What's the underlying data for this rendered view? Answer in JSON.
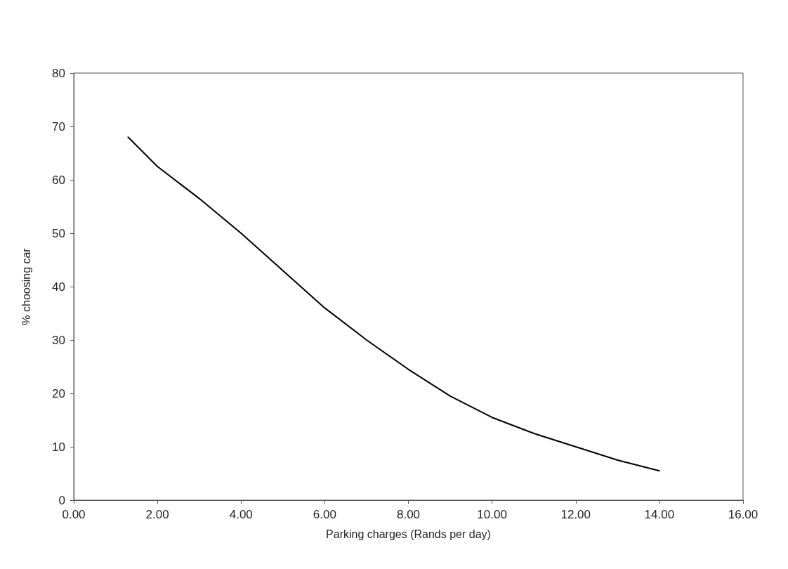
{
  "chart_data": {
    "type": "line",
    "xlabel": "Parking charges (Rands per day)",
    "ylabel": "% choosing car",
    "x": [
      1.3,
      2,
      3,
      4,
      5,
      6,
      7,
      8,
      9,
      10,
      11,
      12,
      13,
      14
    ],
    "series": [
      {
        "color": "#000000",
        "values": [
          68,
          62.5,
          56.5,
          50,
          43,
          36,
          30,
          24.5,
          19.5,
          15.5,
          12.5,
          10,
          7.5,
          5.5
        ]
      }
    ],
    "xlim": [
      0,
      16
    ],
    "xticks": [
      {
        "value": 0,
        "label": "0.00"
      },
      {
        "value": 2,
        "label": "2.00"
      },
      {
        "value": 4,
        "label": "4.00"
      },
      {
        "value": 6,
        "label": "6.00"
      },
      {
        "value": 8,
        "label": "8.00"
      },
      {
        "value": 10,
        "label": "10.00"
      },
      {
        "value": 12,
        "label": "12.00"
      },
      {
        "value": 14,
        "label": "14.00"
      },
      {
        "value": 16,
        "label": "16.00"
      }
    ],
    "ylim": [
      0,
      80
    ],
    "yticks": [
      0,
      10,
      20,
      30,
      40,
      50,
      60,
      70,
      80
    ],
    "grid": false,
    "marker": "none",
    "line_style": "solid"
  }
}
